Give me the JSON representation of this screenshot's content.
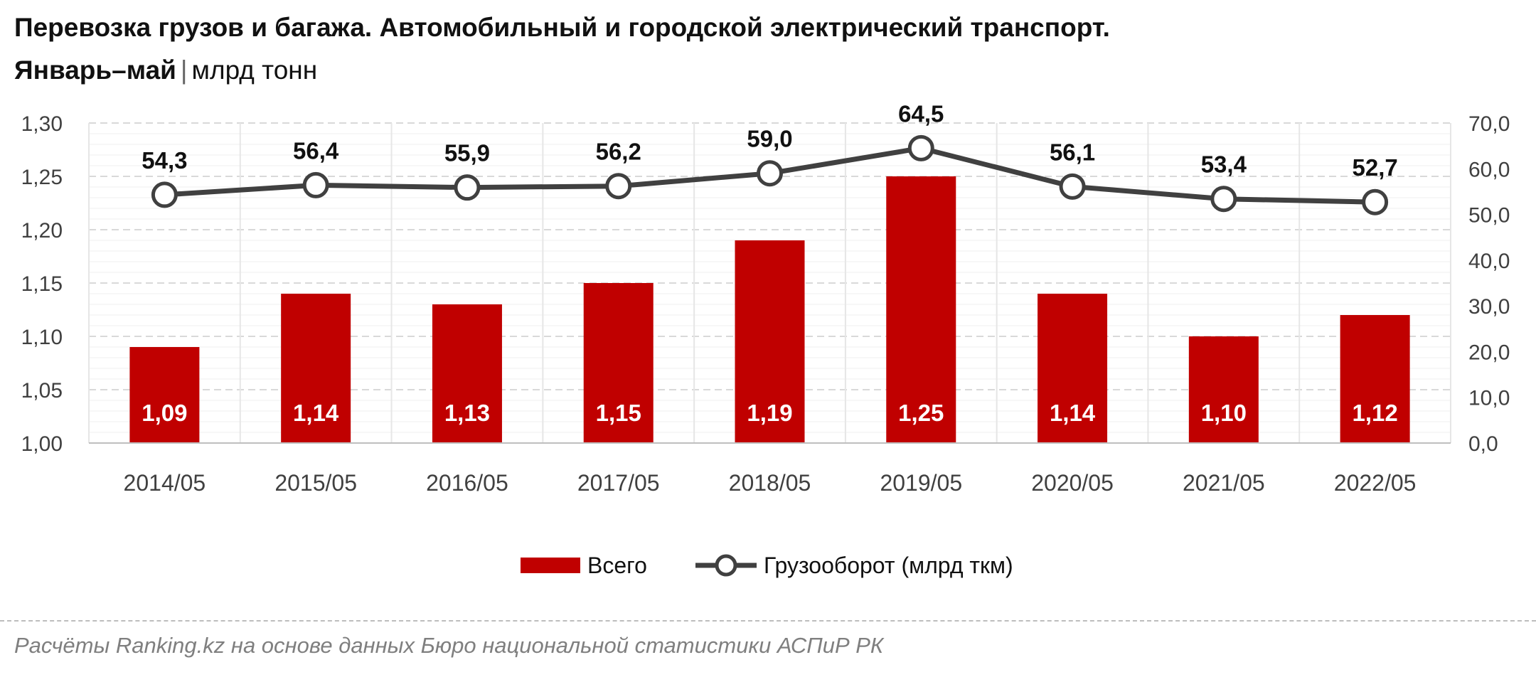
{
  "header": {
    "title": "Перевозка грузов и багажа. Автомобильный и городской электрический транспорт.",
    "subtitle_bold": "Январь–май",
    "subtitle_separator": "|",
    "subtitle_unit": "млрд тонн"
  },
  "footer": {
    "source": "Расчёты Ranking.kz на основе данных Бюро национальной статистики АСПиР РК"
  },
  "colors": {
    "bar": "#c00000",
    "line": "#404040",
    "marker_fill": "#ffffff",
    "grid": "#d9d9d9"
  },
  "chart_data": {
    "type": "bar",
    "categories": [
      "2014/05",
      "2015/05",
      "2016/05",
      "2017/05",
      "2018/05",
      "2019/05",
      "2020/05",
      "2021/05",
      "2022/05"
    ],
    "series": [
      {
        "name": "Всего",
        "type": "bar",
        "axis": "left",
        "values": [
          1.09,
          1.14,
          1.13,
          1.15,
          1.19,
          1.25,
          1.14,
          1.1,
          1.12
        ],
        "labels": [
          "1,09",
          "1,14",
          "1,13",
          "1,15",
          "1,19",
          "1,25",
          "1,14",
          "1,10",
          "1,12"
        ]
      },
      {
        "name": "Грузооборот (млрд ткм)",
        "type": "line",
        "axis": "right",
        "values": [
          54.3,
          56.4,
          55.9,
          56.2,
          59.0,
          64.5,
          56.1,
          53.4,
          52.7
        ],
        "labels": [
          "54,3",
          "56,4",
          "55,9",
          "56,2",
          "59,0",
          "64,5",
          "56,1",
          "53,4",
          "52,7"
        ]
      }
    ],
    "y_left": {
      "range": [
        1.0,
        1.3
      ],
      "ticks": [
        1.0,
        1.05,
        1.1,
        1.15,
        1.2,
        1.25,
        1.3
      ],
      "tick_labels": [
        "1,00",
        "1,05",
        "1,10",
        "1,15",
        "1,20",
        "1,25",
        "1,30"
      ]
    },
    "y_right": {
      "range": [
        0,
        70
      ],
      "ticks": [
        0,
        10,
        20,
        30,
        40,
        50,
        60,
        70
      ],
      "tick_labels": [
        "0,0",
        "10,0",
        "20,0",
        "30,0",
        "40,0",
        "50,0",
        "60,0",
        "70,0"
      ]
    },
    "grid": true,
    "legend_position": "bottom"
  }
}
